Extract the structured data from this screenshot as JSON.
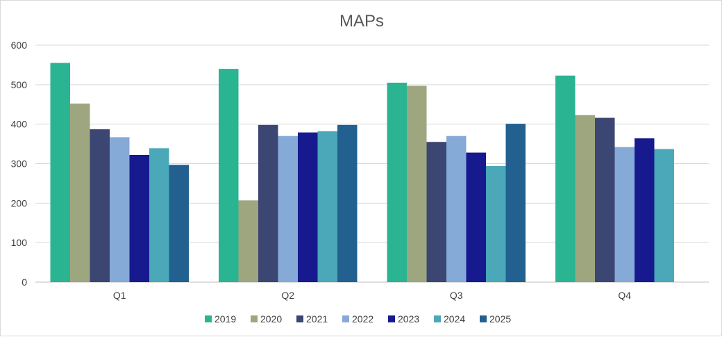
{
  "chart_data": {
    "type": "bar",
    "title": "MAPs",
    "xlabel": "",
    "ylabel": "",
    "categories": [
      "Q1",
      "Q2",
      "Q3",
      "Q4"
    ],
    "ylim": [
      0,
      600
    ],
    "yticks": [
      0,
      100,
      200,
      300,
      400,
      500,
      600
    ],
    "grid": true,
    "legend_position": "bottom",
    "series": [
      {
        "name": "2019",
        "color": "#2bb491",
        "values": [
          555,
          540,
          505,
          523
        ]
      },
      {
        "name": "2020",
        "color": "#9ea67f",
        "values": [
          452,
          207,
          497,
          423
        ]
      },
      {
        "name": "2021",
        "color": "#3b4673",
        "values": [
          387,
          398,
          355,
          416
        ]
      },
      {
        "name": "2022",
        "color": "#86aad8",
        "values": [
          367,
          370,
          370,
          342
        ]
      },
      {
        "name": "2023",
        "color": "#171a8e",
        "values": [
          322,
          379,
          328,
          364
        ]
      },
      {
        "name": "2024",
        "color": "#4aa8b9",
        "values": [
          339,
          382,
          294,
          337
        ]
      },
      {
        "name": "2025",
        "color": "#22608f",
        "values": [
          297,
          398,
          401,
          null
        ]
      }
    ]
  }
}
